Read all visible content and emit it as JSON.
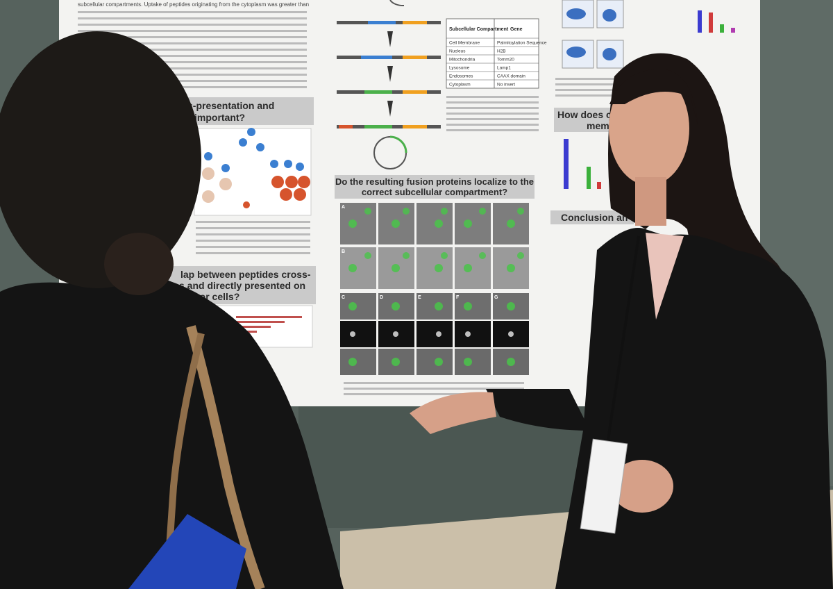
{
  "poster": {
    "intro_lines": [
      "subcellular compartments. Uptake of peptides originating from the cytoplasm was greater than"
    ],
    "headings": {
      "left_top": [
        "s-presentation and",
        "important?"
      ],
      "left_bottom": [
        "lap between peptides cross-",
        "s and directly presented on",
        "tumor cells?"
      ],
      "center": [
        "Do the resulting fusion proteins localize to the",
        "correct subcellular compartment?"
      ],
      "right_top": [
        "How does cros",
        "membran"
      ],
      "right_conclusion": [
        "Conclusion an"
      ]
    },
    "table": {
      "header": [
        "Subcellular Compartment",
        "Gene"
      ],
      "rows": [
        [
          "Cell Membrane",
          "Palmitoylation Sequence"
        ],
        [
          "Nucleus",
          "H2B"
        ],
        [
          "Mitochondria",
          "Tomm20"
        ],
        [
          "Lysosome",
          "Lamp1"
        ],
        [
          "Endosomes",
          "CAAX domain"
        ],
        [
          "Cytoplasm",
          "No insert"
        ]
      ]
    },
    "panel_labels": [
      "A",
      "B",
      "C",
      "D",
      "E",
      "F",
      "G"
    ]
  }
}
